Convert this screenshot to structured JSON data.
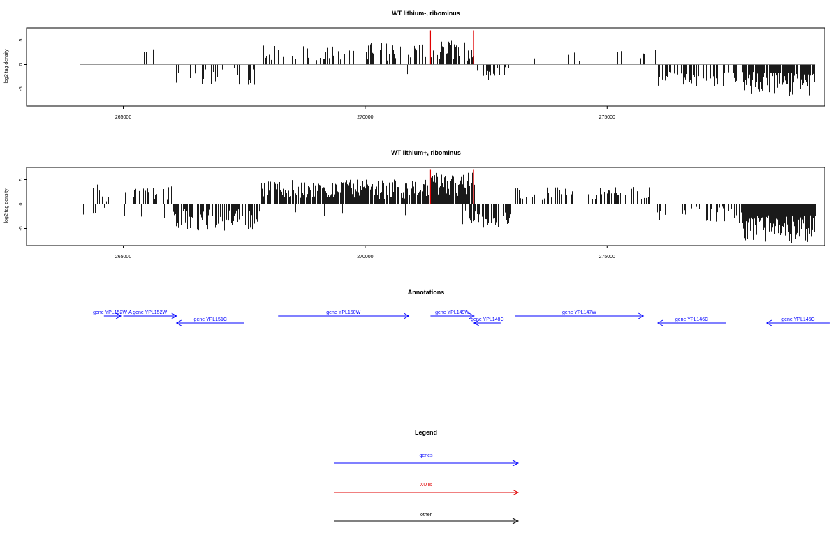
{
  "chart_data": [
    {
      "type": "bar",
      "title": "WT lithium-, ribominus",
      "ylabel": "log2 tag density",
      "xlabel": "",
      "xlim": [
        263000,
        279500
      ],
      "ylim": [
        -8.5,
        7.5
      ],
      "x_ticks": [
        265000,
        270000,
        275000
      ],
      "x_tick_labels": [
        "265000",
        "270000",
        "275000"
      ],
      "y_ticks": [
        5,
        0,
        -5
      ],
      "y_tick_labels": [
        "5",
        "0",
        "-5"
      ],
      "baseline": 0,
      "grid": false,
      "markers": [
        {
          "x": 271350,
          "y": 7,
          "color": "#e00000"
        },
        {
          "x": 272240,
          "y": 7,
          "color": "#e00000"
        }
      ],
      "bar_color": "#000000",
      "regions": [
        {
          "start": 264150,
          "end": 264350,
          "sign": -1,
          "density": 0.05,
          "min": 0.5,
          "max": 1.0
        },
        {
          "start": 264500,
          "end": 264600,
          "sign": -1,
          "density": 0.1,
          "min": 2.5,
          "max": 3.0
        },
        {
          "start": 264900,
          "end": 266050,
          "sign": 1,
          "density": 0.06,
          "min": 2.0,
          "max": 4.0
        },
        {
          "start": 266050,
          "end": 267750,
          "sign": -1,
          "density": 0.3,
          "min": 0.5,
          "max": 4.5
        },
        {
          "start": 267850,
          "end": 271300,
          "sign": 1,
          "density": 0.3,
          "min": 0.8,
          "max": 4.5
        },
        {
          "start": 270450,
          "end": 271150,
          "sign": -1,
          "density": 0.03,
          "min": 0.5,
          "max": 2.0
        },
        {
          "start": 271350,
          "end": 272240,
          "sign": 1,
          "density": 0.55,
          "min": 0.8,
          "max": 5.0
        },
        {
          "start": 272240,
          "end": 273000,
          "sign": -1,
          "density": 0.2,
          "min": 0.5,
          "max": 3.5
        },
        {
          "start": 273300,
          "end": 274600,
          "sign": 1,
          "density": 0.06,
          "min": 0.5,
          "max": 3.0
        },
        {
          "start": 274600,
          "end": 276000,
          "sign": 1,
          "density": 0.08,
          "min": 0.8,
          "max": 3.2
        },
        {
          "start": 276050,
          "end": 277700,
          "sign": -1,
          "density": 0.45,
          "min": 1.5,
          "max": 4.5
        },
        {
          "start": 277800,
          "end": 279300,
          "sign": -1,
          "density": 0.85,
          "min": 1.5,
          "max": 6.5
        }
      ]
    },
    {
      "type": "bar",
      "title": "WT lithium+, ribominus",
      "ylabel": "log2 tag density",
      "xlabel": "",
      "xlim": [
        263000,
        279500
      ],
      "ylim": [
        -8.5,
        7.5
      ],
      "x_ticks": [
        265000,
        270000,
        275000
      ],
      "x_tick_labels": [
        "265000",
        "270000",
        "275000"
      ],
      "y_ticks": [
        5,
        0,
        -5
      ],
      "y_tick_labels": [
        "5",
        "0",
        "-5"
      ],
      "baseline": 0,
      "grid": false,
      "markers": [
        {
          "x": 271350,
          "y": 7,
          "color": "#e00000"
        },
        {
          "x": 272240,
          "y": 7,
          "color": "#e00000"
        }
      ],
      "bar_color": "#000000",
      "regions": [
        {
          "start": 264150,
          "end": 264700,
          "sign": -1,
          "density": 0.15,
          "min": 0.5,
          "max": 2.5
        },
        {
          "start": 264300,
          "end": 266000,
          "sign": 1,
          "density": 0.3,
          "min": 0.5,
          "max": 4.0
        },
        {
          "start": 264900,
          "end": 265900,
          "sign": -1,
          "density": 0.1,
          "min": 0.5,
          "max": 3.0
        },
        {
          "start": 266000,
          "end": 267800,
          "sign": -1,
          "density": 0.6,
          "min": 1.0,
          "max": 5.5
        },
        {
          "start": 267850,
          "end": 271300,
          "sign": 1,
          "density": 0.8,
          "min": 1.0,
          "max": 5.0
        },
        {
          "start": 268500,
          "end": 271000,
          "sign": -1,
          "density": 0.05,
          "min": 0.5,
          "max": 2.5
        },
        {
          "start": 271350,
          "end": 272250,
          "sign": 1,
          "density": 0.9,
          "min": 1.5,
          "max": 6.5
        },
        {
          "start": 272000,
          "end": 273000,
          "sign": -1,
          "density": 0.6,
          "min": 1.0,
          "max": 5.0
        },
        {
          "start": 273100,
          "end": 275900,
          "sign": 1,
          "density": 0.35,
          "min": 0.8,
          "max": 3.5
        },
        {
          "start": 275900,
          "end": 277800,
          "sign": -1,
          "density": 0.25,
          "min": 0.5,
          "max": 4.0
        },
        {
          "start": 277800,
          "end": 279300,
          "sign": -1,
          "density": 1.0,
          "min": 2.0,
          "max": 8.0
        }
      ]
    }
  ],
  "annotations": {
    "title": "Annotations",
    "genes": [
      {
        "label": "gene YPL152W-A",
        "start": 264600,
        "end": 264950,
        "strand": "+",
        "row": 0
      },
      {
        "label": "gene YPL152W",
        "start": 265000,
        "end": 266100,
        "strand": "+",
        "row": 0
      },
      {
        "label": "gene YPL151C",
        "start": 266100,
        "end": 267500,
        "strand": "-",
        "row": 1
      },
      {
        "label": "gene YPL150W",
        "start": 268200,
        "end": 270900,
        "strand": "+",
        "row": 0
      },
      {
        "label": "gene YPL149W",
        "start": 271350,
        "end": 272250,
        "strand": "+",
        "row": 0
      },
      {
        "label": "gene YPL148C",
        "start": 272250,
        "end": 272800,
        "strand": "-",
        "row": 1
      },
      {
        "label": "gene YPL147W",
        "start": 273100,
        "end": 275750,
        "strand": "+",
        "row": 0
      },
      {
        "label": "gene YPL146C",
        "start": 276050,
        "end": 277450,
        "strand": "-",
        "row": 1
      },
      {
        "label": "gene YPL145C",
        "start": 278300,
        "end": 279600,
        "strand": "-",
        "row": 1
      }
    ]
  },
  "legend": {
    "title": "Legend",
    "items": [
      {
        "label": "genes",
        "color": "#0000ff"
      },
      {
        "label": "XUTs",
        "color": "#e00000"
      },
      {
        "label": "other",
        "color": "#000000"
      }
    ]
  }
}
